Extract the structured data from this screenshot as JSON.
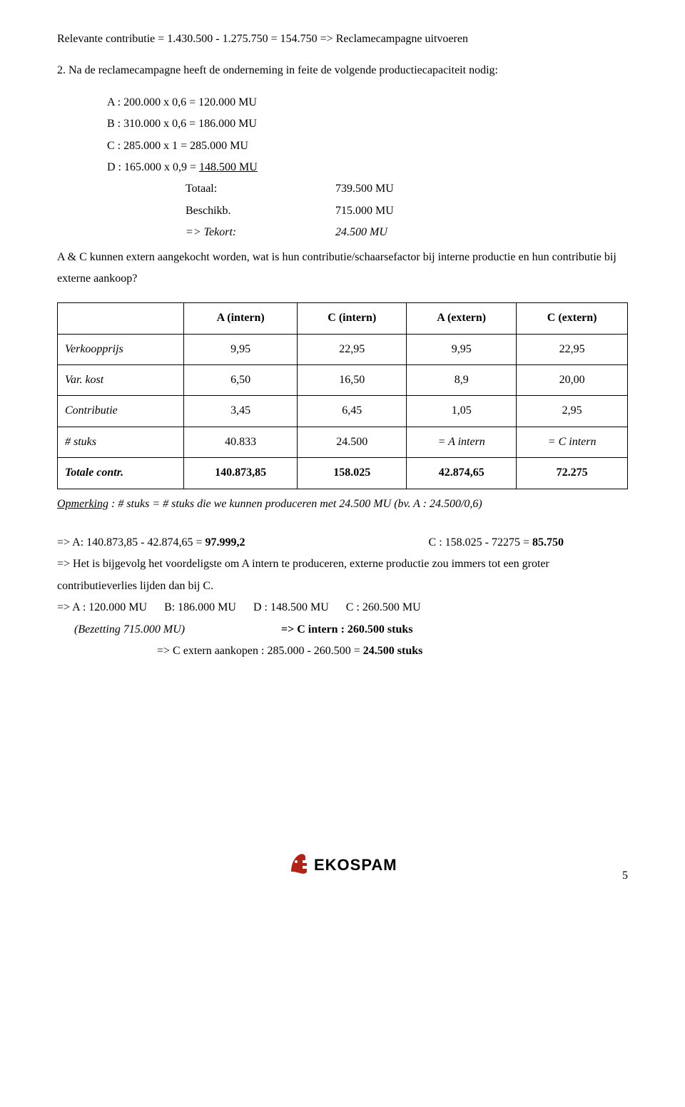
{
  "line_relevante": "Relevante contributie = 1.430.500 - 1.275.750 = 154.750 => Reclamecampagne uitvoeren",
  "q2_lead": "2. Na de reclamecampagne heeft de onderneming in feite de volgende productiecapaciteit nodig:",
  "capacity": {
    "A": "A : 200.000 x 0,6 = 120.000 MU",
    "B": "B : 310.000 x 0,6 = 186.000 MU",
    "C": "C : 285.000 x 1   = 285.000 MU",
    "D_pre": "D : 165.000 x 0,9 = ",
    "D_val": "148.500 MU",
    "totaal_l": "Totaal:",
    "totaal_v": "739.500 MU",
    "beschikb_l": "Beschikb.",
    "beschikb_v": "715.000 MU",
    "tekort_l": "=> Tekort:",
    "tekort_v": "24.500 MU"
  },
  "q2_text": "A & C kunnen extern aangekocht worden, wat is hun contributie/schaarsefactor bij interne productie en hun contributie bij externe aankoop?",
  "table": {
    "headers": [
      "",
      "A (intern)",
      "C (intern)",
      "A (extern)",
      "C (extern)"
    ],
    "rows": [
      {
        "label": "Verkoopprijs",
        "cells": [
          "9,95",
          "22,95",
          "9,95",
          "22,95"
        ],
        "bold": false
      },
      {
        "label": "Var. kost",
        "cells": [
          "6,50",
          "16,50",
          "8,9",
          "20,00"
        ],
        "bold": false
      },
      {
        "label": "Contributie",
        "cells": [
          "3,45",
          "6,45",
          "1,05",
          "2,95"
        ],
        "bold": false
      },
      {
        "label": "# stuks",
        "cells": [
          "40.833",
          "24.500",
          "= A intern",
          "= C intern"
        ],
        "bold": false
      },
      {
        "label": "Totale contr.",
        "cells": [
          "140.873,85",
          "158.025",
          "42.874,65",
          "72.275"
        ],
        "bold": true
      }
    ]
  },
  "opmerking_pre": "Opmerking",
  "opmerking_rest": " : # stuks = # stuks die we kunnen produceren met 24.500 MU (bv. A : 24.500/0,6)",
  "concl": {
    "line1_a_pre": "=> A: 140.873,85 - 42.874,65 = ",
    "line1_a_bold": "97.999,2",
    "line1_c_pre": "C : 158.025 - 72275 = ",
    "line1_c_bold": "85.750",
    "line2": "=> Het is bijgevolg het voordeligste om A intern te produceren, externe productie zou immers tot een groter contributieverlies lijden dan bij C.",
    "line3": "=> A : 120.000 MU      B: 186.000 MU      D : 148.500 MU      C : 260.500 MU",
    "line4_left": "(Bezetting 715.000 MU)",
    "line4_right_pre": "=> C intern : ",
    "line4_right_bold": "260.500 stuks",
    "line5_pre": "=> C extern aankopen : 285.000 - 260.500 = ",
    "line5_bold": "24.500 stuks"
  },
  "footer": {
    "brand": "EKOSPAM",
    "page": "5",
    "logo_fist_color": "#b22216",
    "logo_text_color": "#000000"
  }
}
